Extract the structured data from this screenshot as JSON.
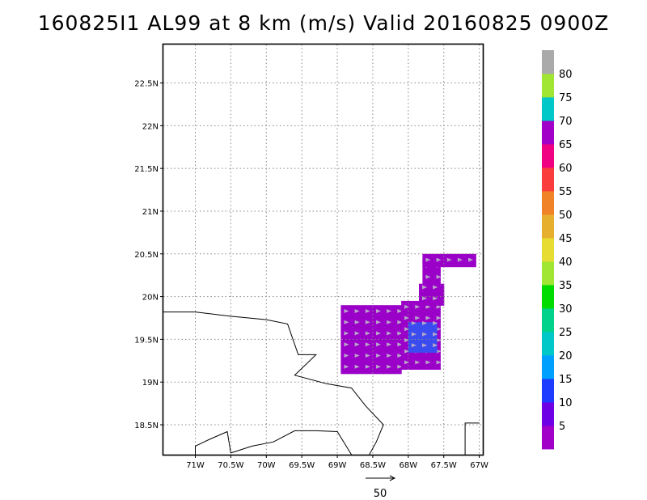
{
  "title": "160825I1 AL99 at 8 km (m/s) Valid 20160825 0900Z",
  "chart_data": {
    "type": "heatmap",
    "title": "160825I1 AL99 at 8 km (m/s) Valid 20160825 0900Z",
    "xlabel": "",
    "ylabel": "",
    "xlim": [
      -71.45,
      -66.95
    ],
    "ylim": [
      18.15,
      22.95
    ],
    "x_ticks": [
      {
        "value": -71.0,
        "label": "71W"
      },
      {
        "value": -70.5,
        "label": "70.5W"
      },
      {
        "value": -70.0,
        "label": "70W"
      },
      {
        "value": -69.5,
        "label": "69.5W"
      },
      {
        "value": -69.0,
        "label": "69W"
      },
      {
        "value": -68.5,
        "label": "68.5W"
      },
      {
        "value": -68.0,
        "label": "68W"
      },
      {
        "value": -67.5,
        "label": "67.5W"
      },
      {
        "value": -67.0,
        "label": "67W"
      }
    ],
    "y_ticks": [
      {
        "value": 18.5,
        "label": "18.5N"
      },
      {
        "value": 19.0,
        "label": "19N"
      },
      {
        "value": 19.5,
        "label": "19.5N"
      },
      {
        "value": 20.0,
        "label": "20N"
      },
      {
        "value": 20.5,
        "label": "20.5N"
      },
      {
        "value": 21.0,
        "label": "21N"
      },
      {
        "value": 21.5,
        "label": "21.5N"
      },
      {
        "value": 22.0,
        "label": "22N"
      },
      {
        "value": 22.5,
        "label": "22.5N"
      }
    ],
    "grid": true,
    "colorbar": {
      "labels": [
        "5",
        "10",
        "15",
        "20",
        "25",
        "30",
        "35",
        "40",
        "45",
        "50",
        "55",
        "60",
        "65",
        "70",
        "75",
        "80"
      ],
      "colors": [
        "#a000c8",
        "#6e00e6",
        "#1e3cff",
        "#00a0ff",
        "#00c8c8",
        "#00d28c",
        "#00dc00",
        "#a0e632",
        "#e6dc32",
        "#e6af2d",
        "#f08228",
        "#fa3c3c",
        "#f00082",
        "#a000c8",
        "#00c8c8",
        "#a0e632",
        "#aaaaaa"
      ]
    },
    "wind_field": {
      "primary_color": "#9b00c9",
      "secondary_color": "#3a4cf0",
      "regions": [
        {
          "lon": [
            -68.95,
            -68.1
          ],
          "lat": [
            19.1,
            19.9
          ],
          "speed": 5
        },
        {
          "lon": [
            -68.1,
            -67.55
          ],
          "lat": [
            19.15,
            19.95
          ],
          "speed": 5
        },
        {
          "lon": [
            -67.85,
            -67.5
          ],
          "lat": [
            19.9,
            20.15
          ],
          "speed": 5
        },
        {
          "lon": [
            -67.8,
            -67.55
          ],
          "lat": [
            20.15,
            20.45
          ],
          "speed": 5
        },
        {
          "lon": [
            -67.8,
            -67.05
          ],
          "lat": [
            20.35,
            20.5
          ],
          "speed": 5
        },
        {
          "lon": [
            -68.0,
            -67.6
          ],
          "lat": [
            19.35,
            19.7
          ],
          "speed": 10
        }
      ]
    },
    "vector_reference": {
      "label": "50"
    }
  }
}
